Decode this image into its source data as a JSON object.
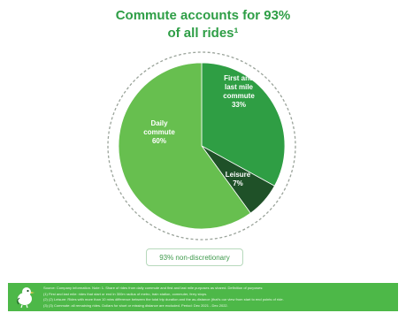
{
  "title": {
    "line1": "Commute accounts for 93%",
    "line2": "of all rides¹"
  },
  "chart_data": {
    "type": "pie",
    "title": "Commute accounts for 93% of all rides¹",
    "slices": [
      {
        "label_lines": [
          "First and",
          "last mile",
          "commute"
        ],
        "value_label": "33%",
        "value": 33,
        "color": "#2f9e44"
      },
      {
        "label_lines": [
          "Leisure"
        ],
        "value_label": "7%",
        "value": 7,
        "color": "#1f5128"
      },
      {
        "label_lines": [
          "Daily",
          "commute"
        ],
        "value_label": "60%",
        "value": 60,
        "color": "#67bf4f"
      }
    ],
    "start_angle_deg": 0,
    "direction": "clockwise",
    "outer_ring": "dashed"
  },
  "badge": {
    "label": "93% non-discretionary"
  },
  "footer": {
    "logo_icon": "bird-mascot-icon",
    "background": "#4db848",
    "notes": [
      "Source: Company information. Note: 1. Share of rides from daily commute and first and last mile purposes as shared. Definition of purposes:",
      "(1)    First and last mile: rides that start or end in 300m radius of metro, train station, commuter, ferry stops.",
      "(2)    (2) Leisure: Rides with more than 10 mins difference between the total trip duration and the as-distance (that's our view from start to end points of ride.",
      "(3)    (3) Commute: all remaining rides. Dollars for short or missing distance are excluded. Period: Dec 2021 - Dec 2022."
    ]
  }
}
